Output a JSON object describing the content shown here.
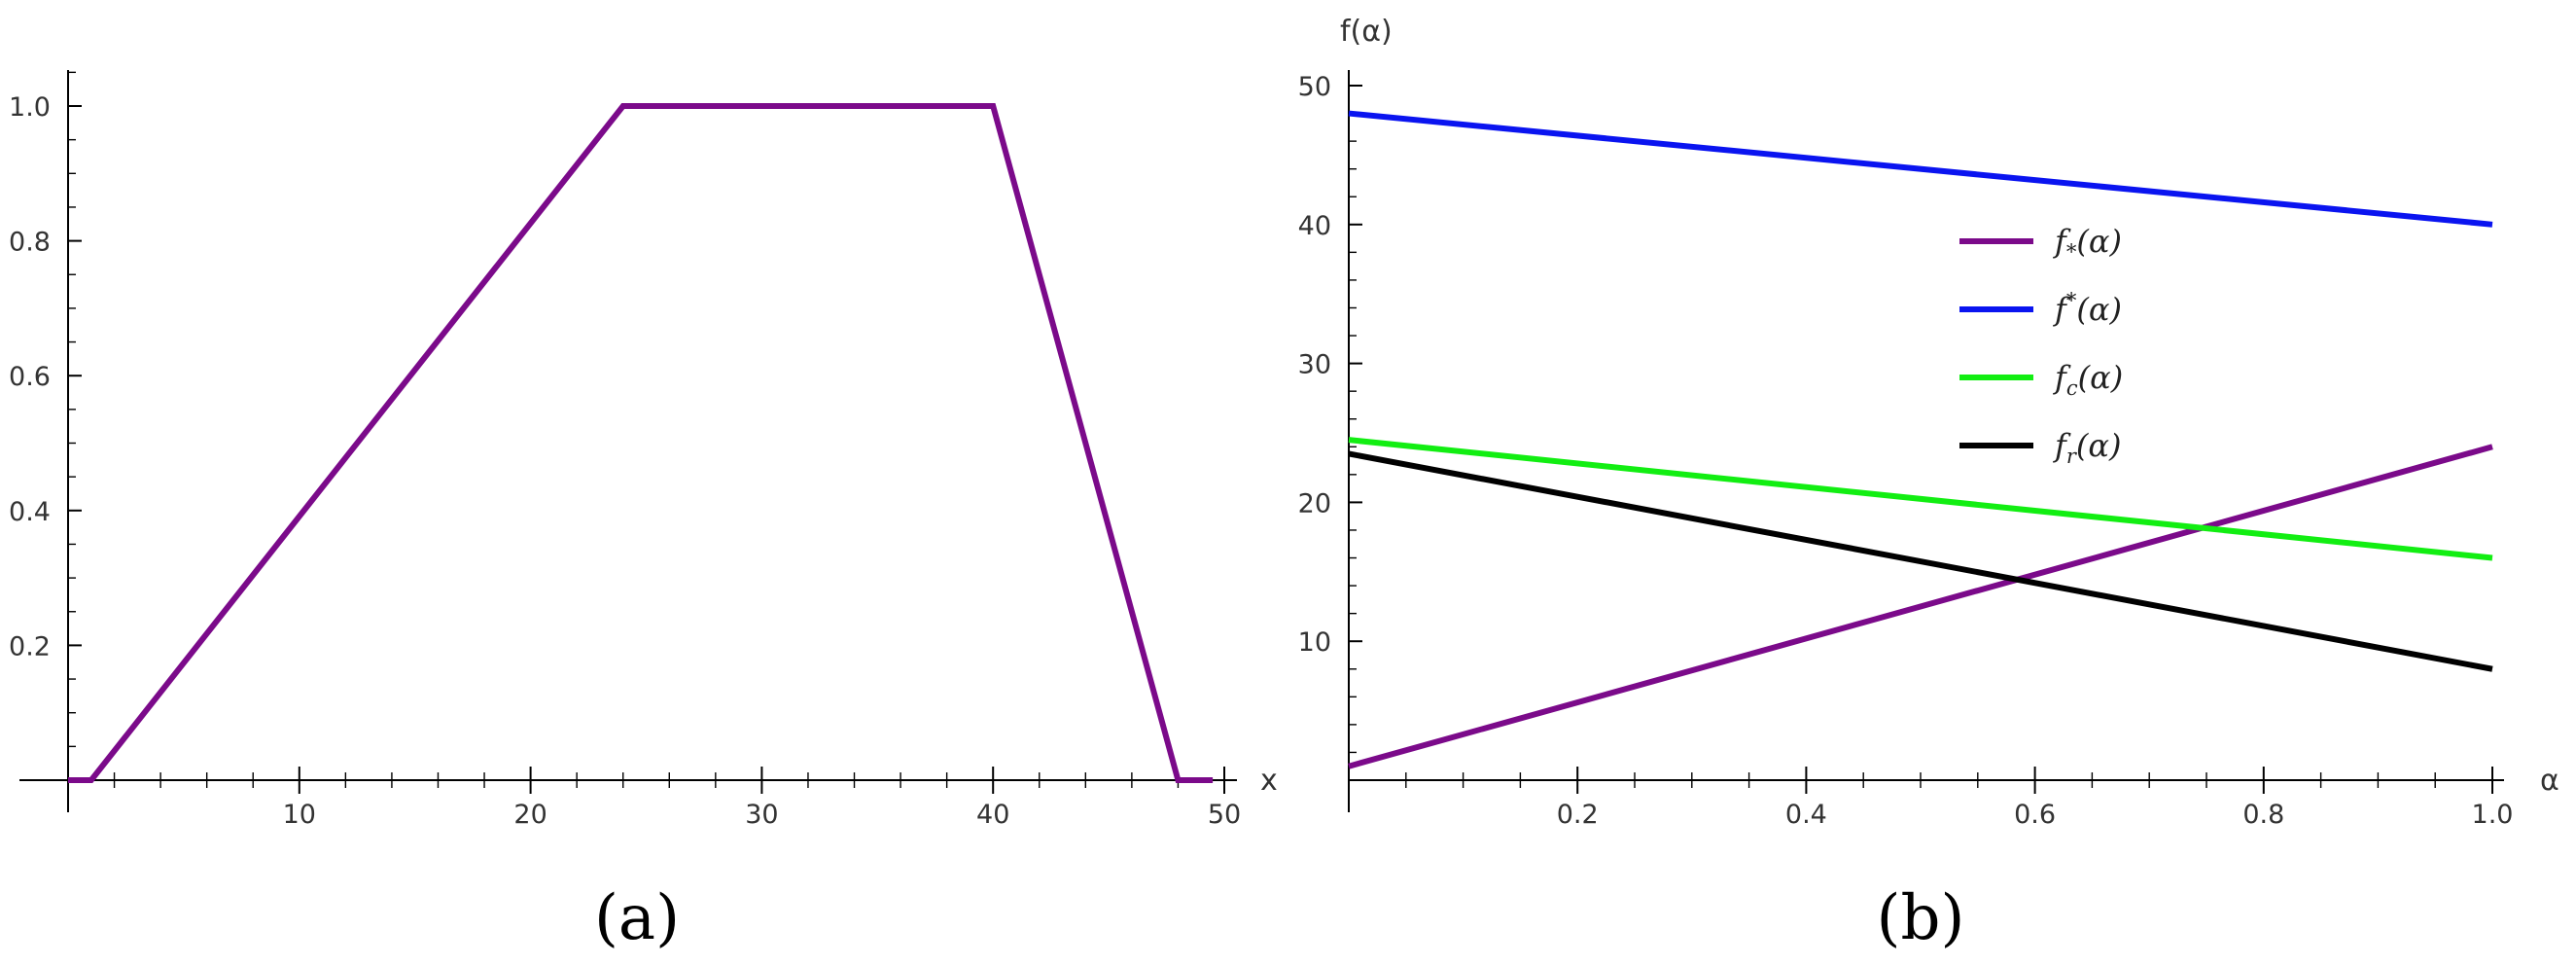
{
  "chart_data": [
    {
      "type": "line",
      "panel_label": "(a)",
      "xlabel": "x",
      "ylabel": "",
      "xlim": [
        0,
        50
      ],
      "ylim": [
        0,
        1.05
      ],
      "x_ticks": [
        10,
        20,
        30,
        40,
        50
      ],
      "y_ticks": [
        0.2,
        0.4,
        0.6,
        0.8,
        1.0
      ],
      "x_tick_labels": [
        "10",
        "20",
        "30",
        "40",
        "50"
      ],
      "y_tick_labels": [
        "0.2",
        "0.4",
        "0.6",
        "0.8",
        "1.0"
      ],
      "grid": false,
      "series": [
        {
          "color": "#7B0A8A",
          "x": [
            0,
            1,
            24,
            40,
            48,
            49.5
          ],
          "y": [
            0,
            0,
            1,
            1,
            0,
            0
          ]
        }
      ]
    },
    {
      "type": "line",
      "panel_label": "(b)",
      "xlabel": "α",
      "ylabel": "f(α)",
      "xlim": [
        0,
        1.0
      ],
      "ylim": [
        0,
        50
      ],
      "x_ticks": [
        0.2,
        0.4,
        0.6,
        0.8,
        1.0
      ],
      "y_ticks": [
        10,
        20,
        30,
        40,
        50
      ],
      "x_tick_labels": [
        "0.2",
        "0.4",
        "0.6",
        "0.8",
        "1.0"
      ],
      "y_tick_labels": [
        "10",
        "20",
        "30",
        "40",
        "50"
      ],
      "grid": false,
      "legend_position": "center-right",
      "series": [
        {
          "name_base": "f",
          "name_mark": "*",
          "name_mark_pos": "sub",
          "name_arg": "(α)",
          "color": "#7B0A8A",
          "x": [
            0,
            1
          ],
          "y": [
            1,
            24
          ]
        },
        {
          "name_base": "f",
          "name_mark": "*",
          "name_mark_pos": "sup",
          "name_arg": "(α)",
          "color": "#0A14F0",
          "x": [
            0,
            1
          ],
          "y": [
            48,
            40
          ]
        },
        {
          "name_base": "f",
          "name_mark": "c",
          "name_mark_pos": "sub",
          "name_arg": "(α)",
          "color": "#12EE12",
          "x": [
            0,
            1
          ],
          "y": [
            24.5,
            16
          ]
        },
        {
          "name_base": "f",
          "name_mark": "r",
          "name_mark_pos": "sub",
          "name_arg": "(α)",
          "color": "#000000",
          "x": [
            0,
            1
          ],
          "y": [
            23.5,
            8
          ]
        }
      ]
    }
  ]
}
